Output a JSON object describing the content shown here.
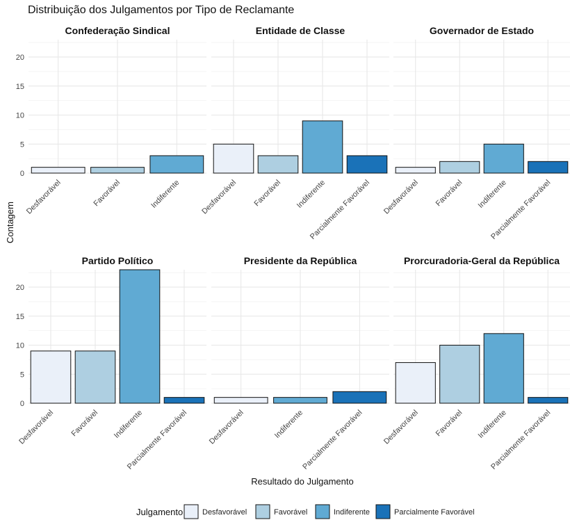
{
  "chart_data": {
    "type": "bar",
    "title": "Distribuição dos Julgamentos por Tipo de Reclamante",
    "xlabel": "Resultado do Julgamento",
    "ylabel": "Contagem",
    "ylim": [
      0,
      23
    ],
    "yticks": [
      0,
      5,
      10,
      15,
      20
    ],
    "grid": true,
    "legend": {
      "title": "Julgamento",
      "position": "bottom",
      "entries": [
        {
          "name": "Desfavorável",
          "color": "#eaf0f9"
        },
        {
          "name": "Favorável",
          "color": "#aecfe1"
        },
        {
          "name": "Indiferente",
          "color": "#60aad3"
        },
        {
          "name": "Parcialmente Favorável",
          "color": "#1a72b8"
        }
      ]
    },
    "facets": [
      {
        "title": "Confederação Sindical",
        "categories": [
          "Desfavorável",
          "Favorável",
          "Indiferente"
        ],
        "values": [
          1,
          1,
          3
        ]
      },
      {
        "title": "Entidade de Classe",
        "categories": [
          "Desfavorável",
          "Favorável",
          "Indiferente",
          "Parcialmente Favorável"
        ],
        "values": [
          5,
          3,
          9,
          3
        ]
      },
      {
        "title": "Governador de Estado",
        "categories": [
          "Desfavorável",
          "Favorável",
          "Indiferente",
          "Parcialmente Favorável"
        ],
        "values": [
          1,
          2,
          5,
          2
        ]
      },
      {
        "title": "Partido Político",
        "categories": [
          "Desfavorável",
          "Favorável",
          "Indiferente",
          "Parcialmente Favorável"
        ],
        "values": [
          9,
          9,
          23,
          1
        ]
      },
      {
        "title": "Presidente da República",
        "categories": [
          "Desfavorável",
          "Indiferente",
          "Parcialmente Favorável"
        ],
        "values": [
          1,
          1,
          2
        ]
      },
      {
        "title": "Prorcuradoria-Geral da República",
        "categories": [
          "Desfavorável",
          "Favorável",
          "Indiferente",
          "Parcialmente Favorável"
        ],
        "values": [
          7,
          10,
          12,
          1
        ]
      }
    ]
  }
}
